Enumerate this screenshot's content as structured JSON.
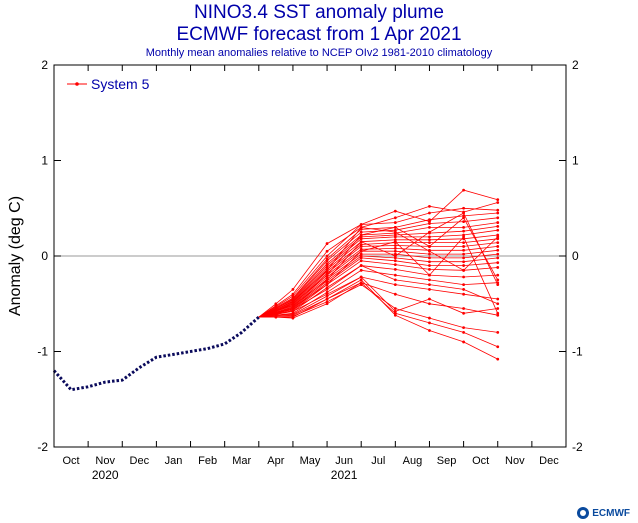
{
  "header": {
    "title": "NINO3.4 SST anomaly plume",
    "subtitle": "ECMWF forecast from 1 Apr 2021",
    "note": "Monthly mean anomalies relative to NCEP OIv2 1981-2010 climatology"
  },
  "logo": {
    "text": "ECMWF"
  },
  "chart_data": {
    "type": "line",
    "title": "NINO3.4 SST anomaly plume",
    "subtitle": "ECMWF forecast from 1 Apr 2021",
    "ylabel": "Anomaly (deg C)",
    "xlabel": "",
    "ylim": [
      -2,
      2
    ],
    "yticks": [
      -2,
      -1,
      0,
      1,
      2
    ],
    "ytick_labels": [
      "-2",
      "-1",
      "0",
      "1",
      "2"
    ],
    "xlim": [
      0,
      15
    ],
    "xticks": [
      {
        "label": "Oct",
        "x": 1
      },
      {
        "label": "Nov",
        "x": 2
      },
      {
        "label": "Dec",
        "x": 3
      },
      {
        "label": "Jan",
        "x": 4
      },
      {
        "label": "Feb",
        "x": 5
      },
      {
        "label": "Mar",
        "x": 6
      },
      {
        "label": "Apr",
        "x": 7
      },
      {
        "label": "May",
        "x": 8
      },
      {
        "label": "Jun",
        "x": 9
      },
      {
        "label": "Jul",
        "x": 10
      },
      {
        "label": "Aug",
        "x": 11
      },
      {
        "label": "Sep",
        "x": 12
      },
      {
        "label": "Oct",
        "x": 13
      },
      {
        "label": "Nov",
        "x": 14
      },
      {
        "label": "Dec",
        "x": 15
      }
    ],
    "year_labels": [
      {
        "label": "2020",
        "x": 2
      },
      {
        "label": "2021",
        "x": 9
      }
    ],
    "grid": false,
    "zero_line": true,
    "legend": {
      "position": "top-left",
      "entries": [
        "System 5"
      ]
    },
    "colors": {
      "observed": "#0a0a5c",
      "forecast": "#ff0000",
      "text": "#0000aa"
    },
    "observed": {
      "x": [
        0,
        0.5,
        1,
        1.5,
        2,
        2.5,
        3,
        3.5,
        4,
        4.5,
        5,
        5.5,
        6
      ],
      "y": [
        -1.2,
        -1.4,
        -1.37,
        -1.32,
        -1.3,
        -1.17,
        -1.06,
        -1.03,
        -1.0,
        -0.97,
        -0.92,
        -0.8,
        -0.64
      ]
    },
    "forecast": {
      "name": "System 5",
      "x": [
        6,
        6.5,
        7,
        8,
        9,
        10,
        11,
        12,
        13
      ],
      "members": [
        [
          -0.64,
          -0.5,
          -0.35,
          0.13,
          0.33,
          0.47,
          0.36,
          0.69,
          0.59
        ],
        [
          -0.64,
          -0.52,
          -0.4,
          0.05,
          0.3,
          0.4,
          0.52,
          0.46,
          0.56
        ],
        [
          -0.64,
          -0.53,
          -0.42,
          0.0,
          0.33,
          0.35,
          0.45,
          0.5,
          0.48
        ],
        [
          -0.64,
          -0.54,
          -0.44,
          -0.03,
          0.28,
          0.3,
          0.38,
          0.42,
          0.45
        ],
        [
          -0.64,
          -0.55,
          -0.45,
          -0.05,
          0.25,
          0.27,
          0.34,
          0.36,
          0.4
        ],
        [
          -0.64,
          -0.55,
          -0.46,
          -0.08,
          0.22,
          0.24,
          0.3,
          0.3,
          0.35
        ],
        [
          -0.64,
          -0.56,
          -0.47,
          -0.1,
          0.2,
          0.22,
          0.24,
          0.26,
          0.31
        ],
        [
          -0.64,
          -0.56,
          -0.48,
          -0.12,
          0.18,
          0.2,
          0.2,
          0.22,
          0.27
        ],
        [
          -0.64,
          -0.57,
          -0.49,
          -0.14,
          0.15,
          0.17,
          0.17,
          0.18,
          0.22
        ],
        [
          -0.64,
          -0.57,
          -0.5,
          -0.16,
          0.12,
          0.14,
          0.14,
          0.14,
          0.18
        ],
        [
          -0.64,
          -0.58,
          -0.51,
          -0.18,
          0.1,
          0.11,
          0.1,
          0.1,
          0.14
        ],
        [
          -0.64,
          -0.58,
          -0.52,
          -0.2,
          0.07,
          0.08,
          0.06,
          0.06,
          0.1
        ],
        [
          -0.64,
          -0.59,
          -0.53,
          -0.22,
          0.05,
          0.05,
          0.02,
          0.02,
          0.06
        ],
        [
          -0.64,
          -0.59,
          -0.54,
          -0.24,
          0.02,
          0.02,
          -0.02,
          -0.02,
          0.02
        ],
        [
          -0.64,
          -0.6,
          -0.55,
          -0.26,
          0.0,
          -0.02,
          -0.06,
          -0.06,
          -0.02
        ],
        [
          -0.64,
          -0.6,
          -0.56,
          -0.28,
          -0.02,
          -0.05,
          -0.1,
          -0.1,
          -0.07
        ],
        [
          -0.64,
          -0.61,
          -0.57,
          -0.3,
          -0.05,
          -0.09,
          -0.14,
          -0.15,
          -0.12
        ],
        [
          -0.64,
          -0.61,
          -0.58,
          -0.33,
          -0.1,
          -0.14,
          -0.2,
          -0.22,
          -0.2
        ],
        [
          -0.64,
          -0.62,
          -0.6,
          -0.38,
          -0.15,
          -0.2,
          -0.25,
          -0.3,
          -0.28
        ],
        [
          -0.64,
          -0.62,
          -0.61,
          -0.42,
          -0.22,
          -0.3,
          -0.35,
          -0.4,
          -0.45
        ],
        [
          -0.64,
          -0.63,
          -0.62,
          -0.45,
          -0.28,
          -0.4,
          -0.5,
          -0.55,
          -0.62
        ],
        [
          -0.64,
          -0.63,
          -0.63,
          -0.48,
          -0.3,
          -0.55,
          -0.65,
          -0.75,
          -0.8
        ],
        [
          -0.64,
          -0.64,
          -0.65,
          -0.5,
          -0.28,
          -0.6,
          -0.7,
          -0.8,
          -0.95
        ],
        [
          -0.64,
          -0.64,
          -0.64,
          -0.45,
          -0.25,
          -0.62,
          -0.78,
          -0.9,
          -1.08
        ],
        [
          -0.64,
          -0.6,
          -0.58,
          -0.4,
          -0.22,
          -0.58,
          -0.45,
          -0.6,
          -0.55
        ],
        [
          -0.64,
          -0.59,
          -0.56,
          -0.35,
          -0.1,
          -0.25,
          -0.3,
          -0.35,
          -0.5
        ],
        [
          -0.64,
          -0.57,
          -0.52,
          -0.25,
          0.15,
          0.0,
          0.25,
          0.45,
          -0.3
        ],
        [
          -0.64,
          -0.56,
          -0.48,
          -0.15,
          0.3,
          0.25,
          0.05,
          -0.15,
          0.2
        ],
        [
          -0.64,
          -0.58,
          -0.5,
          -0.2,
          0.22,
          0.3,
          0.1,
          0.4,
          -0.25
        ],
        [
          -0.64,
          -0.6,
          -0.54,
          -0.3,
          0.05,
          0.15,
          -0.2,
          0.2,
          -0.6
        ]
      ]
    }
  }
}
